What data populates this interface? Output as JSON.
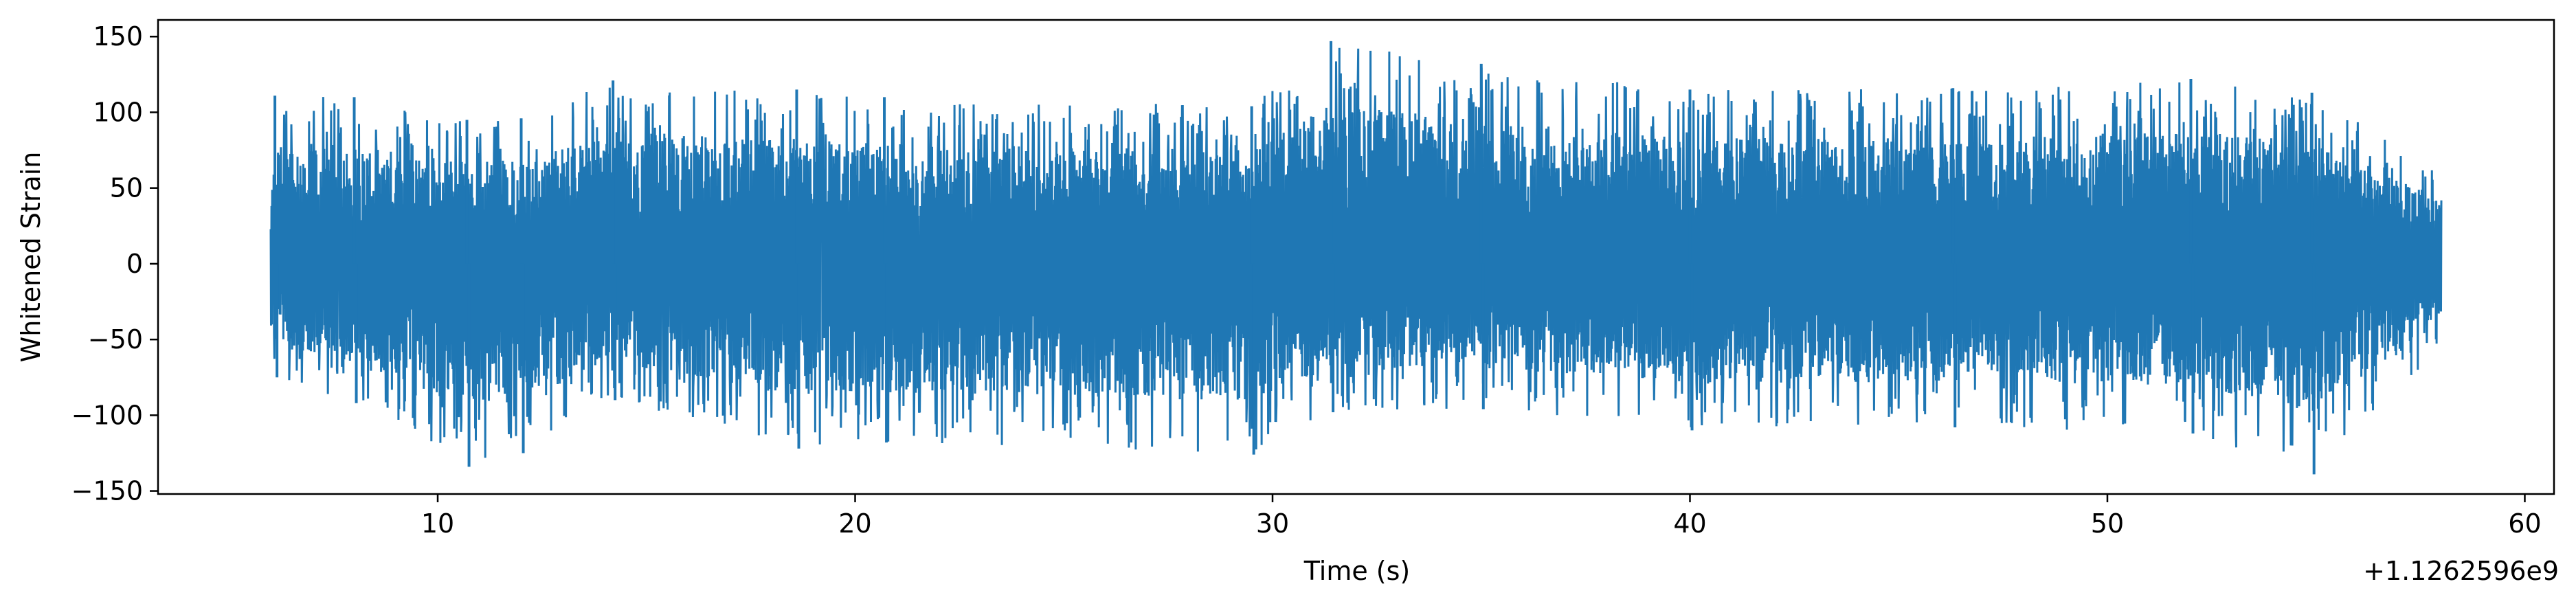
{
  "chart_data": {
    "type": "line",
    "title": "",
    "xlabel": "Time (s)",
    "ylabel": "Whitened Strain",
    "x_offset_label": "+1.1262596e9",
    "xlim": [
      3.3,
      60.7
    ],
    "ylim": [
      -152,
      161
    ],
    "x_ticks": [
      10,
      20,
      30,
      40,
      50,
      60
    ],
    "y_ticks": [
      150,
      100,
      50,
      0,
      -50,
      -100,
      -150
    ],
    "x_tick_labels": [
      "10",
      "20",
      "30",
      "40",
      "50",
      "60"
    ],
    "y_tick_labels": [
      "150",
      "100",
      "50",
      "0",
      "−50",
      "−100",
      "−150"
    ],
    "grid": false,
    "series": [
      {
        "color": "#1f77b4",
        "x_range": [
          6.0,
          58.0
        ],
        "envelope": [
          {
            "x": 6.0,
            "min": -55,
            "max": 58
          },
          {
            "x": 6.1,
            "min": -75,
            "max": 111
          },
          {
            "x": 8.0,
            "min": -92,
            "max": 110
          },
          {
            "x": 10.7,
            "min": -134,
            "max": 95
          },
          {
            "x": 12.0,
            "min": -125,
            "max": 96
          },
          {
            "x": 14.2,
            "min": -90,
            "max": 121
          },
          {
            "x": 18.6,
            "min": -122,
            "max": 115
          },
          {
            "x": 20.7,
            "min": -118,
            "max": 110
          },
          {
            "x": 29.5,
            "min": -126,
            "max": 104
          },
          {
            "x": 31.4,
            "min": -98,
            "max": 147
          },
          {
            "x": 35.0,
            "min": -96,
            "max": 132
          },
          {
            "x": 40.0,
            "min": -110,
            "max": 115
          },
          {
            "x": 46.3,
            "min": -108,
            "max": 116
          },
          {
            "x": 52.0,
            "min": -112,
            "max": 122
          },
          {
            "x": 54.9,
            "min": -139,
            "max": 113
          },
          {
            "x": 58.0,
            "min": -55,
            "max": 60
          }
        ]
      }
    ]
  }
}
